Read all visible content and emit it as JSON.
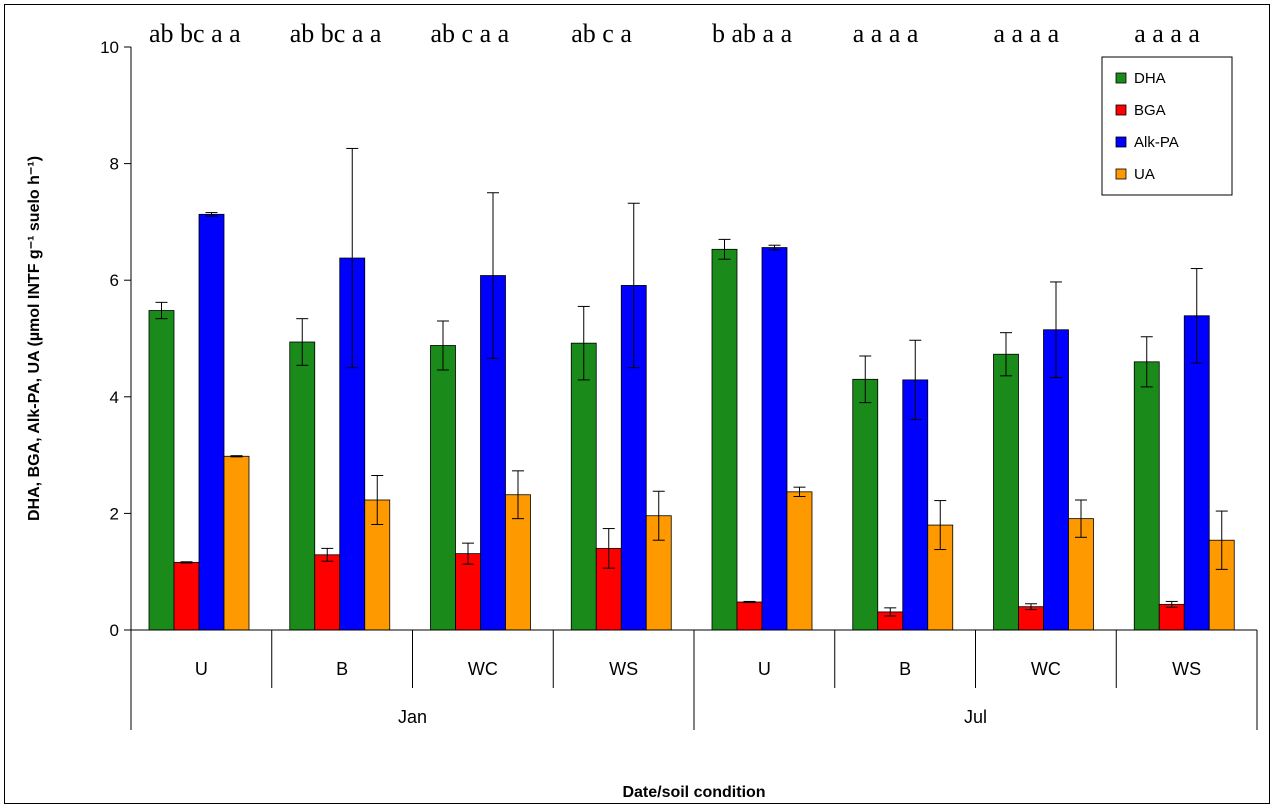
{
  "chart_data": {
    "type": "bar",
    "title": "",
    "xlabel": "Date/soil condition",
    "ylabel": "DHA, BGA, Alk-PA, UA (µmol INTF g⁻¹ suelo h⁻¹)",
    "ylim": [
      0,
      10
    ],
    "yticks": [
      "0",
      "2",
      "4",
      "6",
      "8",
      "10"
    ],
    "grid": false,
    "legend_position": "top-right",
    "groups": [
      {
        "label": "Jan",
        "categories": [
          "U",
          "B",
          "WC",
          "WS"
        ]
      },
      {
        "label": "Jul",
        "categories": [
          "U",
          "B",
          "WC",
          "WS"
        ]
      }
    ],
    "categories": [
      "U",
      "B",
      "WC",
      "WS",
      "U",
      "B",
      "WC",
      "WS"
    ],
    "series": [
      {
        "name": "DHA",
        "color": "#1a8a1a",
        "values": [
          5.48,
          4.94,
          4.88,
          4.92,
          6.53,
          4.3,
          4.73,
          4.6
        ],
        "errors": [
          0.14,
          0.4,
          0.42,
          0.63,
          0.17,
          0.4,
          0.37,
          0.43
        ]
      },
      {
        "name": "BGA",
        "color": "#ff0000",
        "values": [
          1.16,
          1.29,
          1.31,
          1.4,
          0.48,
          0.31,
          0.4,
          0.44
        ],
        "errors": [
          0.01,
          0.11,
          0.18,
          0.34,
          0.01,
          0.07,
          0.05,
          0.05
        ]
      },
      {
        "name": "Alk-PA",
        "color": "#0000ff",
        "values": [
          7.13,
          6.38,
          6.08,
          5.91,
          6.56,
          4.29,
          5.15,
          5.39
        ],
        "errors": [
          0.03,
          1.88,
          1.42,
          1.41,
          0.04,
          0.68,
          0.82,
          0.81
        ]
      },
      {
        "name": "UA",
        "color": "#ff9900",
        "values": [
          2.98,
          2.23,
          2.32,
          1.96,
          2.37,
          1.8,
          1.91,
          1.54
        ],
        "errors": [
          0.01,
          0.42,
          0.41,
          0.42,
          0.08,
          0.42,
          0.32,
          0.5
        ]
      }
    ],
    "significance_letters": [
      "ab bc a a",
      "ab bc a a",
      "ab c a a",
      "ab c a",
      "b ab a a",
      "a a a a",
      "a a a a",
      "a a a a"
    ]
  }
}
